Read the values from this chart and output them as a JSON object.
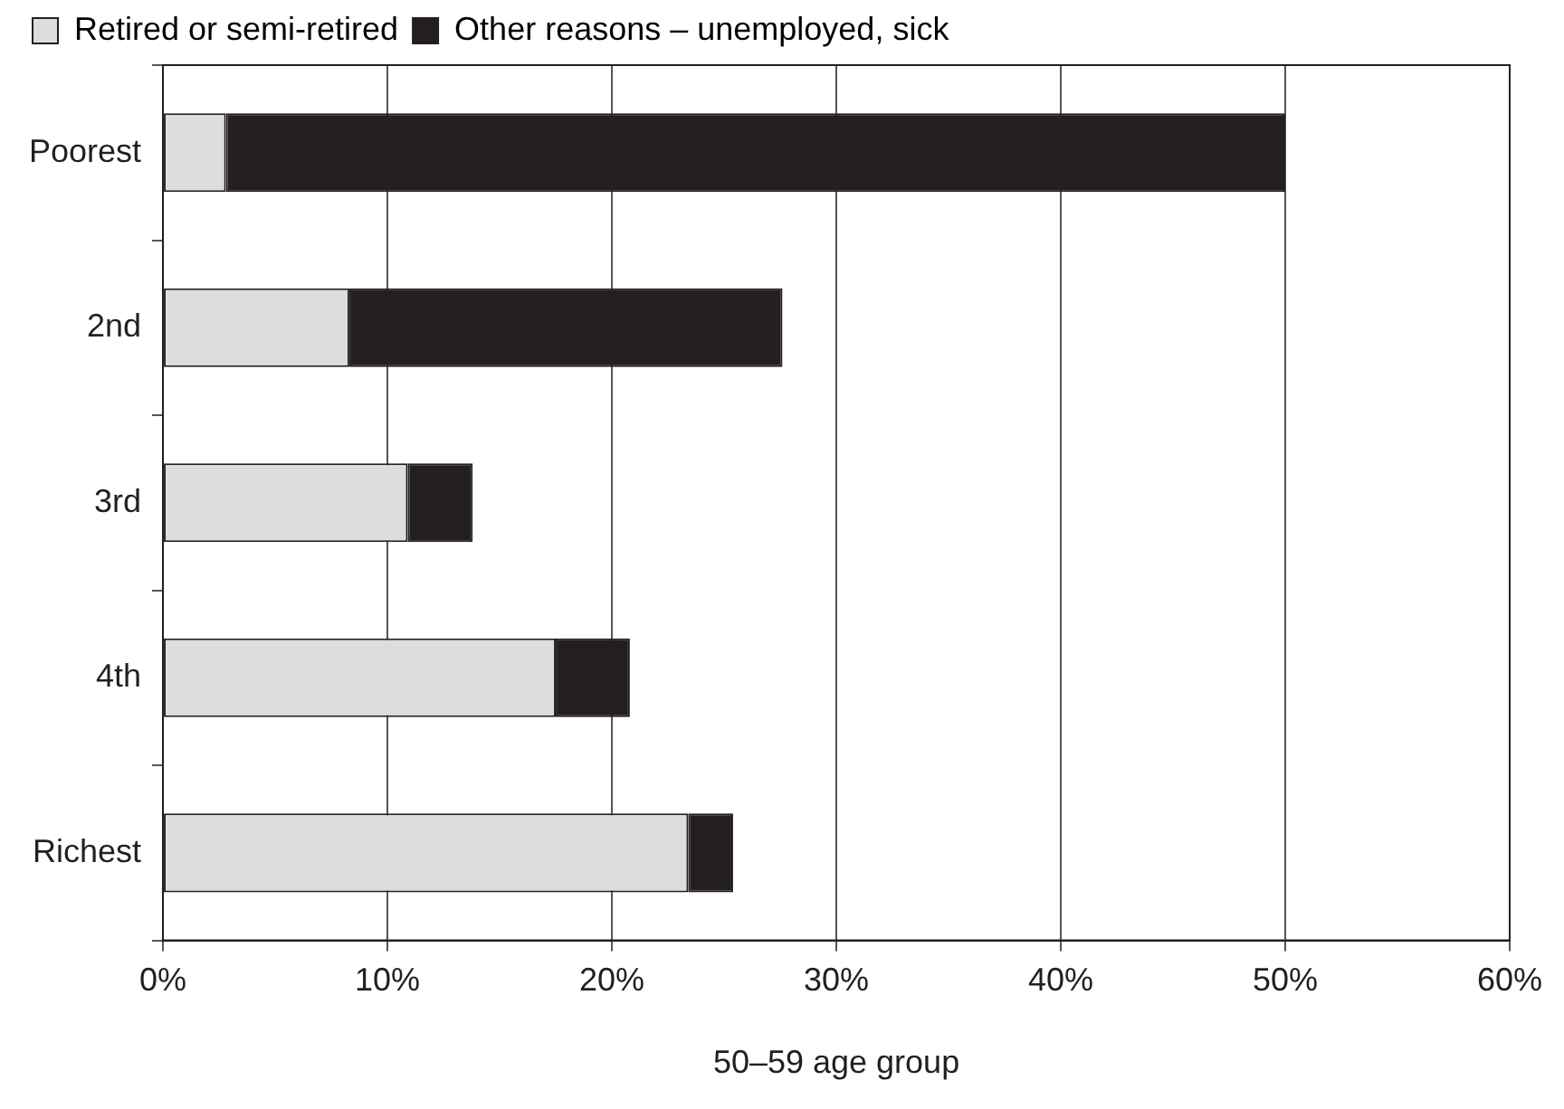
{
  "chart_data": {
    "type": "bar",
    "orientation": "horizontal",
    "stacked": true,
    "xlabel": "50–59 age group",
    "categories": [
      "Poorest",
      "2nd",
      "3rd",
      "4th",
      "Richest"
    ],
    "series": [
      {
        "name": "Retired or semi-retired",
        "color": "#dcdddf",
        "values": [
          2.8,
          8.3,
          10.9,
          17.5,
          23.4
        ]
      },
      {
        "name": "Other reasons – unemployed, sick",
        "color": "#231f20",
        "values": [
          47.2,
          19.3,
          2.9,
          3.3,
          2.0
        ]
      }
    ],
    "xlim": [
      0,
      60
    ],
    "xticks": [
      {
        "value": 0,
        "label": "0%"
      },
      {
        "value": 10,
        "label": "10%"
      },
      {
        "value": 20,
        "label": "20%"
      },
      {
        "value": 30,
        "label": "30%"
      },
      {
        "value": 40,
        "label": "40%"
      },
      {
        "value": 50,
        "label": "50%"
      },
      {
        "value": 60,
        "label": "60%"
      }
    ],
    "grid": "x",
    "legend": "top left"
  }
}
